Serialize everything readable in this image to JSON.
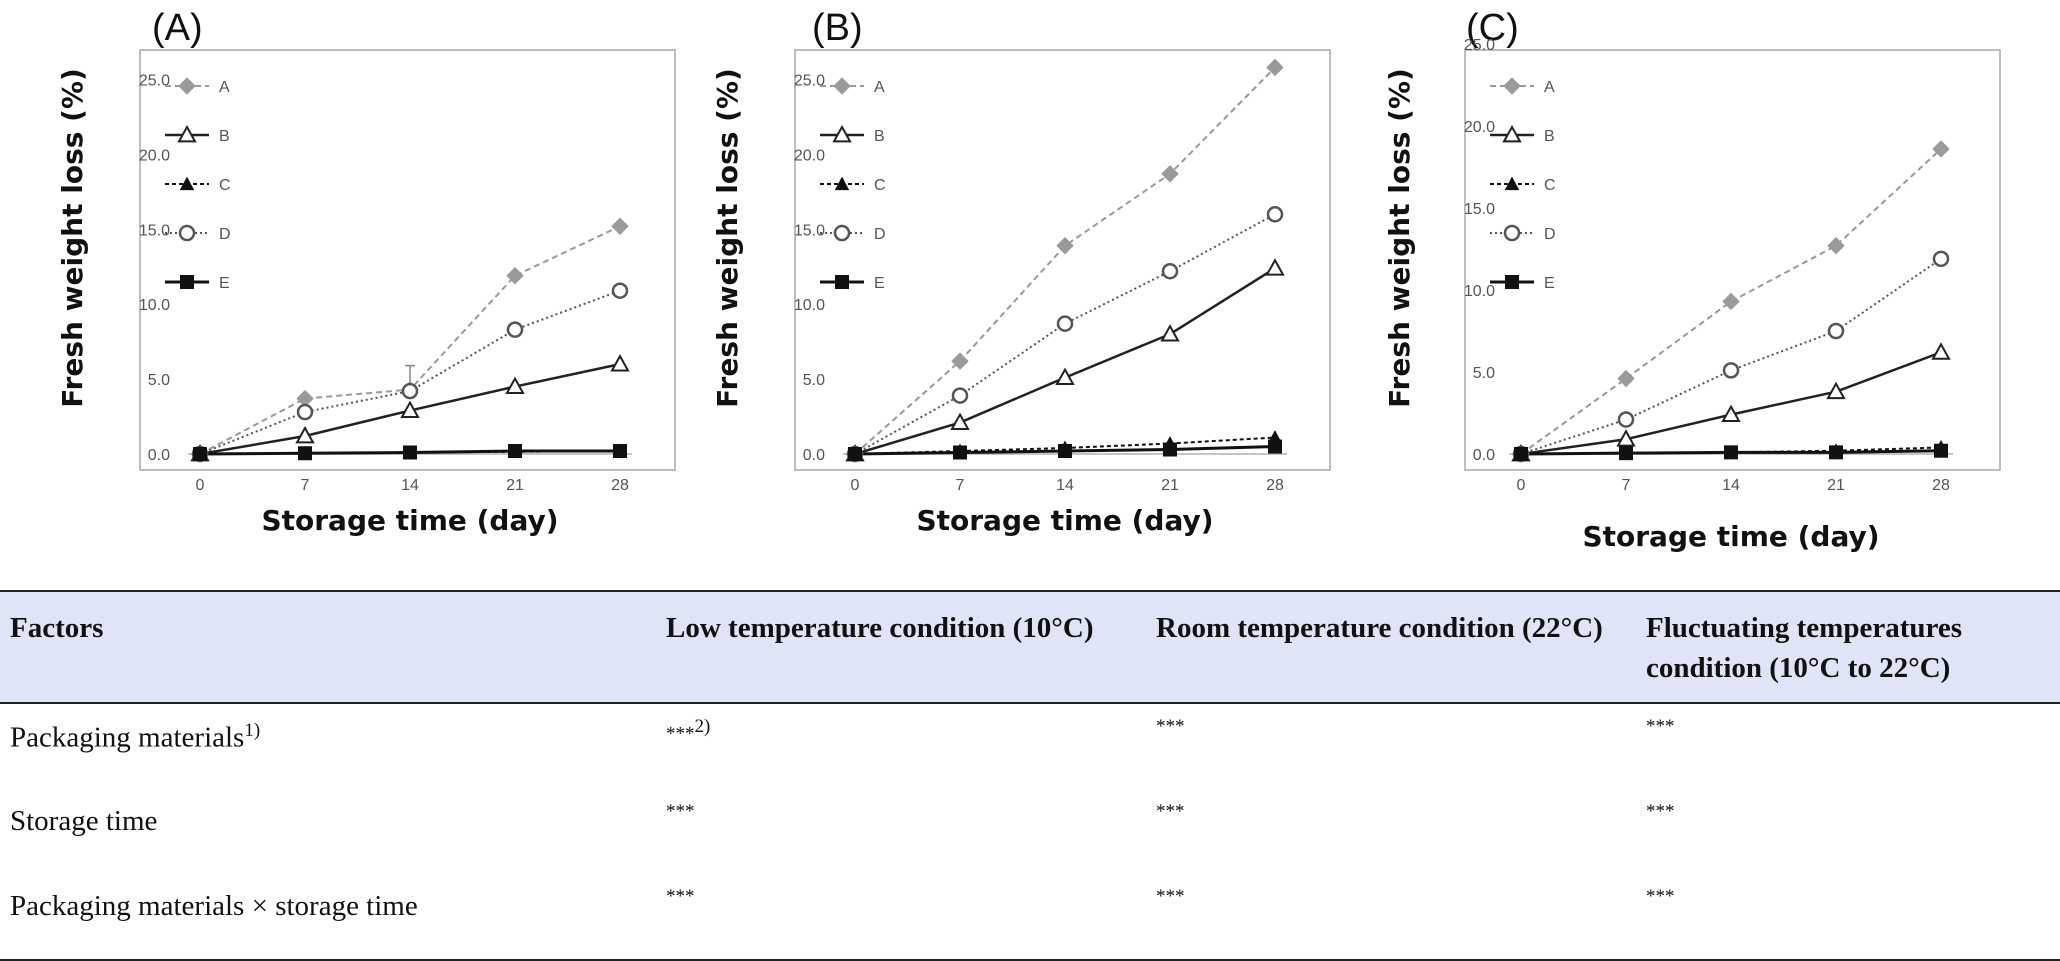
{
  "chart_data": [
    {
      "type": "line",
      "panel_label": "(A)",
      "xlabel": "Storage time (day)",
      "ylabel": "Fresh weight loss (%)",
      "x": [
        0,
        7,
        14,
        21,
        28
      ],
      "ylim": [
        0,
        27.5
      ],
      "yticks": [
        "0.0",
        "5.0",
        "10.0",
        "15.0",
        "20.0",
        "25.0"
      ],
      "legend_position": "top-left",
      "series": [
        {
          "name": "A",
          "values": [
            0,
            3.7,
            4.3,
            11.9,
            15.2
          ]
        },
        {
          "name": "B",
          "values": [
            0,
            1.2,
            2.9,
            4.5,
            6.0
          ]
        },
        {
          "name": "C",
          "values": [
            0,
            0.05,
            0.1,
            0.15,
            0.2
          ]
        },
        {
          "name": "D",
          "values": [
            0,
            2.8,
            4.2,
            8.3,
            10.9
          ]
        },
        {
          "name": "E",
          "values": [
            0,
            0.05,
            0.1,
            0.2,
            0.2
          ]
        }
      ]
    },
    {
      "type": "line",
      "panel_label": "(B)",
      "xlabel": "Storage time (day)",
      "ylabel": "Fresh weight loss (%)",
      "x": [
        0,
        7,
        14,
        21,
        28
      ],
      "ylim": [
        0,
        27.5
      ],
      "yticks": [
        "0.0",
        "5.0",
        "10.0",
        "15.0",
        "20.0",
        "25.0"
      ],
      "legend_position": "top-left",
      "series": [
        {
          "name": "A",
          "values": [
            0,
            6.2,
            13.9,
            18.7,
            25.8
          ]
        },
        {
          "name": "B",
          "values": [
            0,
            2.1,
            5.1,
            8.0,
            12.4
          ]
        },
        {
          "name": "C",
          "values": [
            0,
            0.2,
            0.4,
            0.7,
            1.1
          ]
        },
        {
          "name": "D",
          "values": [
            0,
            3.9,
            8.7,
            12.2,
            16.0
          ]
        },
        {
          "name": "E",
          "values": [
            0,
            0.1,
            0.2,
            0.3,
            0.5
          ]
        }
      ]
    },
    {
      "type": "line",
      "panel_label": "(C)",
      "xlabel": "Storage time (day)",
      "ylabel": "Fresh weight loss (%)",
      "x": [
        0,
        7,
        14,
        21,
        28
      ],
      "ylim": [
        0,
        25
      ],
      "yticks": [
        "0.0",
        "5.0",
        "10.0",
        "15.0",
        "20.0",
        "25.0"
      ],
      "legend_position": "top-left",
      "series": [
        {
          "name": "A",
          "values": [
            0,
            4.6,
            9.3,
            12.7,
            18.6
          ]
        },
        {
          "name": "B",
          "values": [
            0,
            0.9,
            2.4,
            3.8,
            6.2
          ]
        },
        {
          "name": "C",
          "values": [
            0,
            0.05,
            0.1,
            0.2,
            0.4
          ]
        },
        {
          "name": "D",
          "values": [
            0,
            2.1,
            5.1,
            7.5,
            11.9
          ]
        },
        {
          "name": "E",
          "values": [
            0,
            0.05,
            0.1,
            0.1,
            0.2
          ]
        }
      ]
    }
  ],
  "table": {
    "headers": [
      "Factors",
      "Low temperature condition (10°C)",
      "Room temperature condition (22°C)",
      "Fluctuating temperatures condition (10°C to 22°C)"
    ],
    "rows": [
      {
        "factor": "Packaging materials",
        "factor_sup": "1)",
        "cells": [
          "***",
          "***",
          "***"
        ],
        "first_sup": "2)"
      },
      {
        "factor": "Storage time",
        "cells": [
          "***",
          "***",
          "***"
        ]
      },
      {
        "factor": "Packaging materials × storage time",
        "cells": [
          "***",
          "***",
          "***"
        ]
      }
    ]
  },
  "colors": {
    "series_A": "#9a9a9a",
    "series_B": "#222222",
    "series_C": "#111111",
    "series_D": "#555555",
    "series_E": "#111111",
    "header_bg": "#dfe4f7"
  }
}
